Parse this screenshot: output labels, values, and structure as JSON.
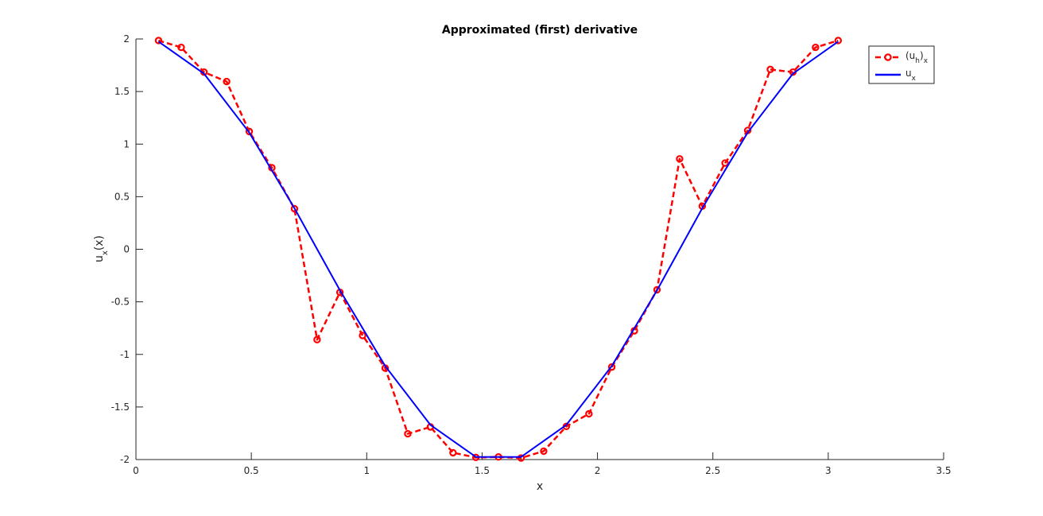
{
  "chart_data": {
    "type": "line",
    "title": "Approximated (first) derivative",
    "xlabel": "x",
    "ylabel": "u_x(x)",
    "xlim": [
      0,
      3.5
    ],
    "ylim": [
      -2,
      2
    ],
    "xticks": [
      0,
      0.5,
      1,
      1.5,
      2,
      2.5,
      3,
      3.5
    ],
    "xtick_labels": [
      "0",
      "0.5",
      "1",
      "1.5",
      "2",
      "2.5",
      "3",
      "3.5"
    ],
    "yticks": [
      -2,
      -1.5,
      -1,
      -0.5,
      0,
      0.5,
      1,
      1.5,
      2
    ],
    "ytick_labels": [
      "-2",
      "-1.5",
      "-1",
      "-0.5",
      "0",
      "0.5",
      "1",
      "1.5",
      "2"
    ],
    "grid": false,
    "legend_position": "top-right",
    "series": [
      {
        "name": "(u_h)_x",
        "legend_main": "(u",
        "legend_sub1": "h",
        "legend_mid": ")",
        "legend_sub2": "x",
        "color": "#ff0000",
        "line_style": "dashed",
        "marker": "circle",
        "points": [
          [
            0.098,
            1.985
          ],
          [
            0.196,
            1.92
          ],
          [
            0.295,
            1.685
          ],
          [
            0.393,
            1.595
          ],
          [
            0.491,
            1.12
          ],
          [
            0.589,
            0.775
          ],
          [
            0.687,
            0.385
          ],
          [
            0.785,
            -0.86
          ],
          [
            0.884,
            -0.41
          ],
          [
            0.982,
            -0.82
          ],
          [
            1.08,
            -1.13
          ],
          [
            1.178,
            -1.755
          ],
          [
            1.276,
            -1.69
          ],
          [
            1.374,
            -1.935
          ],
          [
            1.473,
            -1.98
          ],
          [
            1.571,
            -1.975
          ],
          [
            1.669,
            -1.985
          ],
          [
            1.767,
            -1.92
          ],
          [
            1.865,
            -1.685
          ],
          [
            1.963,
            -1.565
          ],
          [
            2.062,
            -1.12
          ],
          [
            2.16,
            -0.775
          ],
          [
            2.258,
            -0.385
          ],
          [
            2.356,
            0.86
          ],
          [
            2.454,
            0.41
          ],
          [
            2.553,
            0.82
          ],
          [
            2.651,
            1.13
          ],
          [
            2.749,
            1.71
          ],
          [
            2.847,
            1.685
          ],
          [
            2.945,
            1.92
          ],
          [
            3.043,
            1.985
          ]
        ]
      },
      {
        "name": "u_x",
        "legend_main": "u",
        "legend_sub1": "x",
        "color": "#0000ff",
        "line_style": "solid",
        "marker": "none",
        "points": [
          [
            0.098,
            1.975
          ],
          [
            0.295,
            1.67
          ],
          [
            0.491,
            1.11
          ],
          [
            0.687,
            0.39
          ],
          [
            0.884,
            -0.39
          ],
          [
            1.08,
            -1.11
          ],
          [
            1.276,
            -1.67
          ],
          [
            1.473,
            -1.975
          ],
          [
            1.669,
            -1.975
          ],
          [
            1.865,
            -1.67
          ],
          [
            2.062,
            -1.11
          ],
          [
            2.258,
            -0.39
          ],
          [
            2.454,
            0.39
          ],
          [
            2.651,
            1.11
          ],
          [
            2.847,
            1.67
          ],
          [
            3.043,
            1.975
          ]
        ]
      }
    ]
  }
}
